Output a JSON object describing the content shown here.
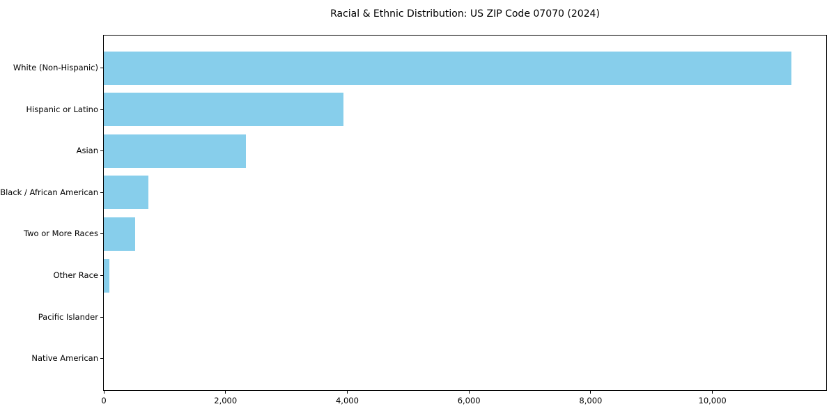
{
  "figure": {
    "background_color": "#FFFFFF",
    "spine_color": "#000000",
    "text_color": "#000000"
  },
  "chart_data": {
    "type": "bar",
    "orientation": "horizontal",
    "title": "Racial & Ethnic Distribution: US ZIP Code 07070 (2024)",
    "categories": [
      "White (Non-Hispanic)",
      "Hispanic or Latino",
      "Asian",
      "Black / African American",
      "Two or More Races",
      "Other Race",
      "Pacific Islander",
      "Native American"
    ],
    "values": [
      11300,
      3940,
      2330,
      730,
      515,
      95,
      0,
      0
    ],
    "bar_color": "#87CEEB",
    "xlabel": "",
    "ylabel": "",
    "xlim": [
      0,
      11870
    ],
    "xticks": [
      0,
      2000,
      4000,
      6000,
      8000,
      10000
    ],
    "xtick_labels": [
      "0",
      "2,000",
      "4,000",
      "6,000",
      "8,000",
      "10,000"
    ],
    "grid": false,
    "legend": null
  }
}
